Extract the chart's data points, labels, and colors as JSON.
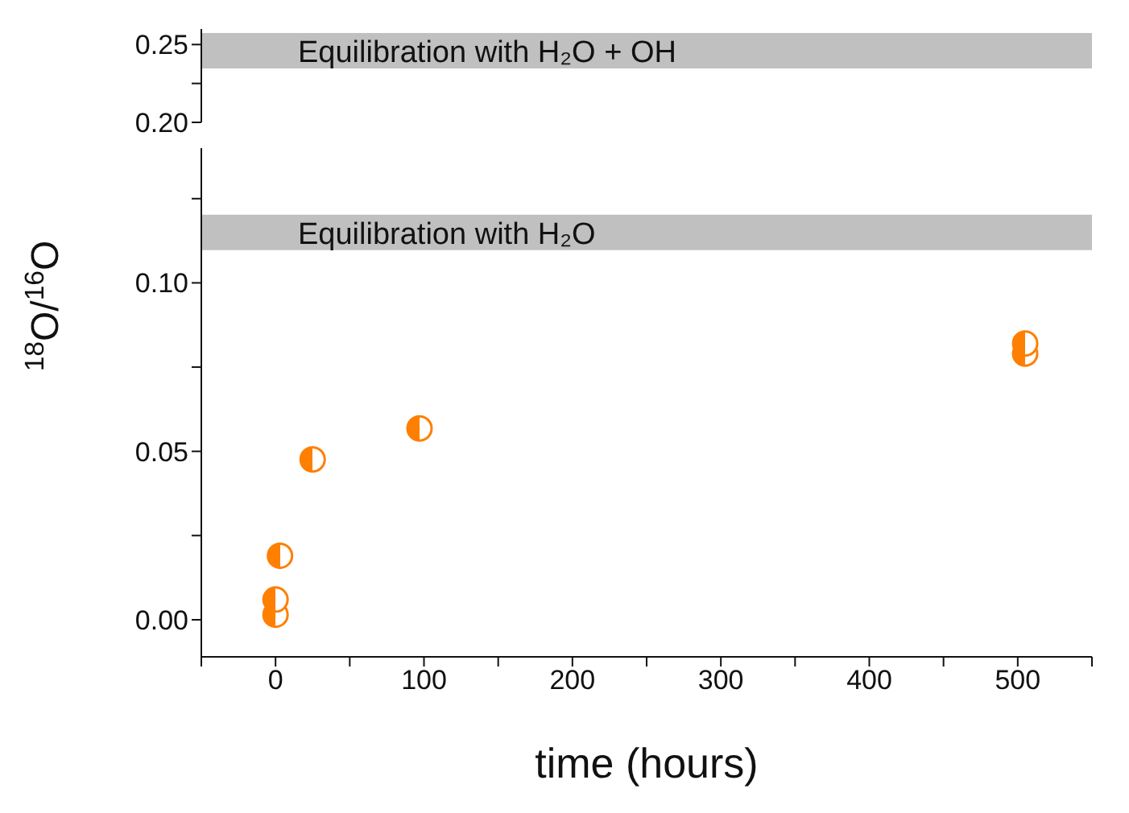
{
  "chart_data": [
    {
      "type": "scatter",
      "xlim": [
        -50,
        550
      ],
      "ylim": [
        0.2,
        0.26
      ],
      "yticks": [
        {
          "value": 0.2,
          "label": "0.20"
        },
        {
          "value": 0.225,
          "label": null
        },
        {
          "value": 0.25,
          "label": "0.25"
        }
      ],
      "tick_labels": "y",
      "ref_lines": [
        {
          "axis": "y",
          "value": 0.246,
          "label": "Equilibration with H₂O + OH",
          "color": "#c0c0c0"
        }
      ]
    },
    {
      "type": "scatter",
      "xlabel": "time (hours)",
      "ylabel": "$^{18}$O/$^{16}$O",
      "xlim": [
        -50,
        550
      ],
      "xticks": [
        {
          "value": -50,
          "label": null
        },
        0,
        {
          "value": 50,
          "label": null
        },
        100,
        {
          "value": 150,
          "label": null
        },
        200,
        {
          "value": 250,
          "label": null
        },
        300,
        {
          "value": 350,
          "label": null
        },
        400,
        {
          "value": 450,
          "label": null
        },
        500,
        {
          "value": 550,
          "label": null
        }
      ],
      "ylim": [
        -0.011,
        0.14
      ],
      "yticks": [
        {
          "value": 0,
          "label": "0.00"
        },
        {
          "value": 0.025,
          "label": null
        },
        {
          "value": 0.05,
          "label": "0.05"
        },
        {
          "value": 0.075,
          "label": null
        },
        {
          "value": 0.1,
          "label": "0.10"
        },
        {
          "value": 0.125,
          "label": null
        }
      ],
      "marker": "circle",
      "series": [
        {
          "color": "#ff7f00",
          "x": [
            0,
            0,
            3,
            25,
            97,
            505,
            505
          ],
          "values": [
            0.0015,
            0.006,
            0.019,
            0.0476,
            0.0568,
            0.079,
            0.082
          ]
        }
      ],
      "ref_lines": [
        {
          "axis": "y",
          "value": 0.115,
          "label": "Equilibration with H₂O",
          "color": "#c0c0c0"
        }
      ]
    }
  ]
}
